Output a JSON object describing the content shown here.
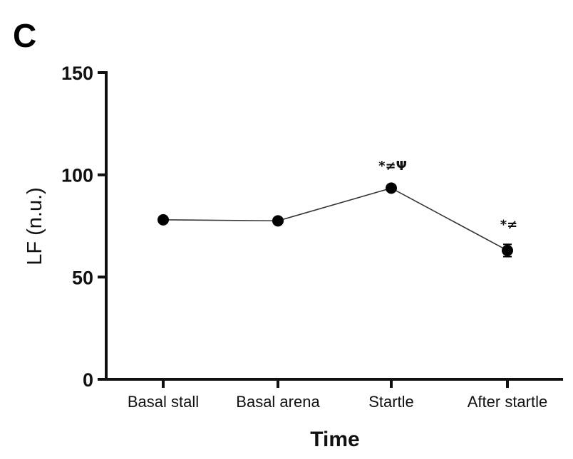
{
  "panel_label": "C",
  "chart_data": {
    "type": "line",
    "xlabel": "Time",
    "ylabel": "LF (n.u.)",
    "categories": [
      "Basal stall",
      "Basal arena",
      "Startle",
      "After startle"
    ],
    "series": [
      {
        "values": [
          78,
          77.5,
          93.5,
          63
        ],
        "errors": [
          1,
          1,
          1.2,
          3
        ]
      }
    ],
    "annotations": [
      "",
      "",
      "*≠Ψ",
      "*≠"
    ],
    "ylim": [
      0,
      150
    ],
    "yticks": [
      0,
      50,
      100,
      150
    ],
    "grid": false,
    "legend": "none"
  }
}
